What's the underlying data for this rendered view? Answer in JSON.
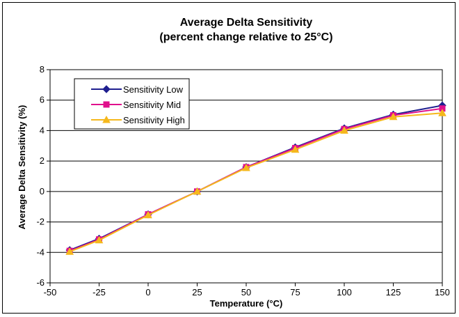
{
  "chart_data": {
    "type": "line",
    "title": "Average Delta Sensitivity",
    "subtitle": "(percent change relative to 25°C)",
    "xlabel": "Temperature (°C)",
    "ylabel": "Average Delta Sensitivity (%)",
    "xlim": [
      -50,
      150
    ],
    "ylim": [
      -6,
      8
    ],
    "x_ticks": [
      "-50",
      "-25",
      "0",
      "25",
      "50",
      "75",
      "100",
      "125",
      "150"
    ],
    "y_ticks": [
      "-6",
      "-4",
      "-2",
      "0",
      "2",
      "4",
      "6",
      "8"
    ],
    "grid": "horizontal",
    "legend_position": "top-left",
    "x": [
      -40,
      -25,
      0,
      25,
      50,
      75,
      100,
      125,
      150
    ],
    "series": [
      {
        "name": "Sensitivity Low",
        "color": "#1f1f8f",
        "marker": "diamond",
        "values": [
          -3.85,
          -3.1,
          -1.5,
          0.0,
          1.6,
          2.9,
          4.15,
          5.05,
          5.65
        ]
      },
      {
        "name": "Sensitivity Mid",
        "color": "#e0108c",
        "marker": "square",
        "values": [
          -3.9,
          -3.15,
          -1.5,
          0.0,
          1.6,
          2.85,
          4.1,
          5.0,
          5.45
        ]
      },
      {
        "name": "Sensitivity High",
        "color": "#f5b81c",
        "marker": "triangle",
        "values": [
          -3.95,
          -3.2,
          -1.55,
          0.0,
          1.55,
          2.75,
          4.0,
          4.9,
          5.15
        ]
      }
    ]
  }
}
